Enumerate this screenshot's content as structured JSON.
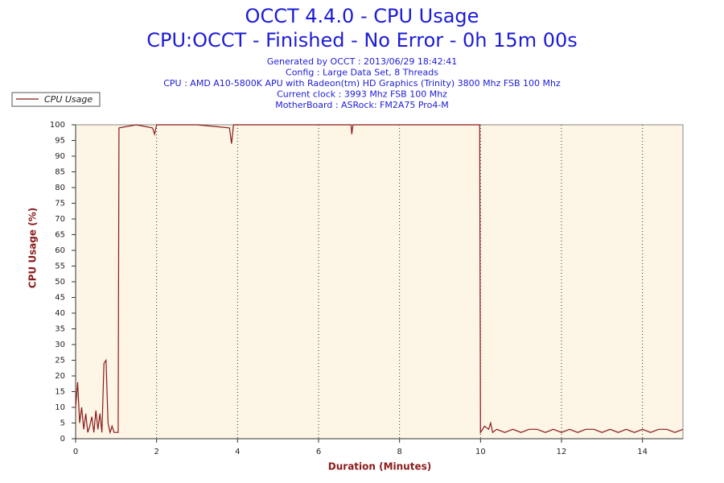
{
  "chart_data": {
    "type": "line",
    "title": "OCCT 4.4.0 - CPU Usage",
    "subtitle": "CPU:OCCT - Finished - No Error - 0h 15m 00s",
    "info": [
      "Generated by OCCT : 2013/06/29 18:42:41",
      "Config : Large Data Set, 8 Threads",
      "CPU : AMD A10-5800K APU with Radeon(tm) HD Graphics (Trinity) 3800 Mhz FSB 100 Mhz",
      "Current clock : 3993 Mhz FSB 100 Mhz",
      "MotherBoard : ASRock: FM2A75 Pro4-M"
    ],
    "x_label": "Duration (Minutes)",
    "y_label": "CPU Usage (%)",
    "x": [
      0,
      0.05,
      0.1,
      0.15,
      0.2,
      0.25,
      0.3,
      0.35,
      0.4,
      0.45,
      0.5,
      0.55,
      0.6,
      0.65,
      0.7,
      0.75,
      0.8,
      0.85,
      0.9,
      0.95,
      1.05,
      1.07,
      1.5,
      1.9,
      1.95,
      2.0,
      3.0,
      3.8,
      3.85,
      3.9,
      5.0,
      6.0,
      6.8,
      6.82,
      6.85,
      8.0,
      9.0,
      9.98,
      10.0,
      10.1,
      10.2,
      10.25,
      10.3,
      10.4,
      10.6,
      10.8,
      11.0,
      11.2,
      11.4,
      11.6,
      11.8,
      12.0,
      12.2,
      12.4,
      12.6,
      12.8,
      13.0,
      13.2,
      13.4,
      13.6,
      13.8,
      14.0,
      14.2,
      14.4,
      14.6,
      14.8,
      15.0
    ],
    "series": [
      {
        "name": "CPU Usage",
        "color": "#8b1a1a",
        "values": [
          10,
          18,
          5,
          10,
          3,
          8,
          2,
          4,
          7,
          2,
          9,
          3,
          8,
          2,
          24,
          25,
          5,
          2,
          4,
          2,
          2,
          99,
          100,
          99,
          97,
          100,
          100,
          99,
          94,
          100,
          100,
          100,
          100,
          97,
          100,
          100,
          100,
          100,
          2,
          4,
          3,
          5,
          2,
          3,
          2,
          3,
          2,
          3,
          3,
          2,
          3,
          2,
          3,
          2,
          3,
          3,
          2,
          3,
          2,
          3,
          2,
          3,
          2,
          3,
          3,
          2,
          3
        ]
      }
    ],
    "xlim": [
      0,
      15
    ],
    "ylim": [
      0,
      100
    ],
    "xticks": [
      0,
      2,
      4,
      6,
      8,
      10,
      12,
      14
    ],
    "yticks": [
      0,
      5,
      10,
      15,
      20,
      25,
      30,
      35,
      40,
      45,
      50,
      55,
      60,
      65,
      70,
      75,
      80,
      85,
      90,
      95,
      100
    ],
    "grid": true,
    "background": "#fdf5e6"
  }
}
